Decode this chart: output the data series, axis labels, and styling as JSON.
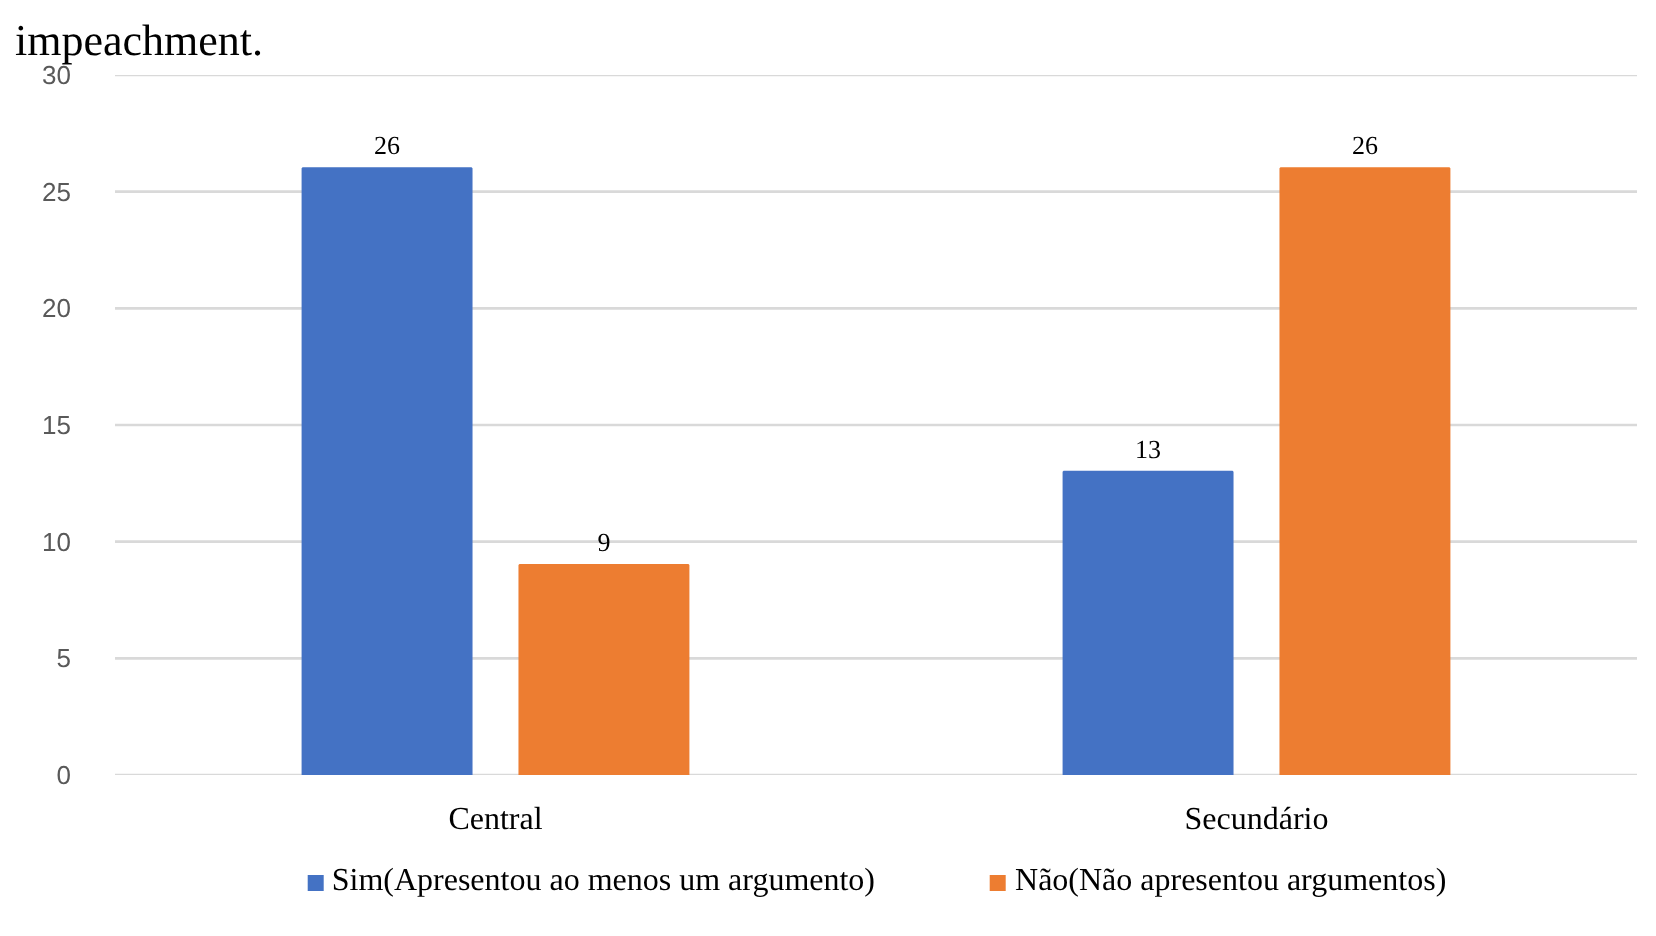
{
  "chart_data": {
    "type": "bar",
    "title": "impeachment.",
    "categories": [
      "Central",
      "Secundário"
    ],
    "series": [
      {
        "name": "Sim(Apresentou ao menos um argumento)",
        "color": "#4472c4",
        "values": [
          26,
          13
        ]
      },
      {
        "name": "Não(Não apresentou argumentos)",
        "color": "#ed7d31",
        "values": [
          9,
          26
        ]
      }
    ],
    "ylim": [
      0,
      30
    ],
    "yticks": [
      0,
      5,
      10,
      15,
      20,
      25,
      30
    ],
    "grid": "y",
    "legend": "bottom",
    "data_labels": true
  }
}
